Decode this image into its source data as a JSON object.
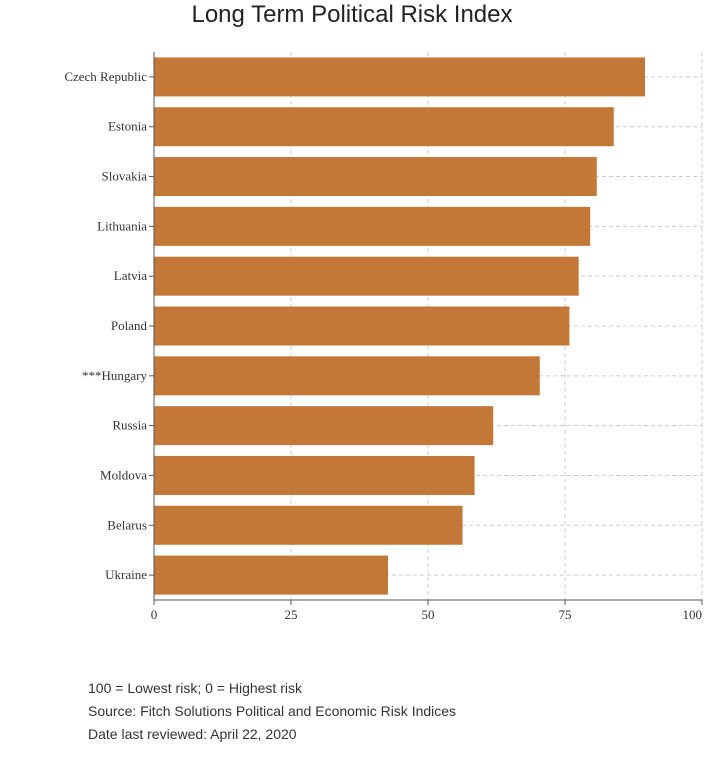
{
  "chart_data": {
    "type": "bar",
    "orientation": "horizontal",
    "title": "Long Term Political Risk Index",
    "categories": [
      "Czech Republic",
      "Estonia",
      "Slovakia",
      "Lithuania",
      "Latvia",
      "Poland",
      "***Hungary",
      "Russia",
      "Moldova",
      "Belarus",
      "Ukraine"
    ],
    "values": [
      89.6,
      83.9,
      80.8,
      79.6,
      77.5,
      75.8,
      70.4,
      61.9,
      58.5,
      56.3,
      42.7
    ],
    "xlim": [
      0,
      100
    ],
    "xticks": [
      "0",
      "25",
      "50",
      "75",
      "100"
    ],
    "xlabel": "",
    "ylabel": "",
    "grid": true,
    "bar_color": "#c37837"
  },
  "notes": {
    "scale": "100 = Lowest risk; 0 = Highest risk",
    "source": "Source: Fitch Solutions Political and Economic Risk Indices",
    "reviewed": "Date last reviewed: April 22, 2020"
  }
}
